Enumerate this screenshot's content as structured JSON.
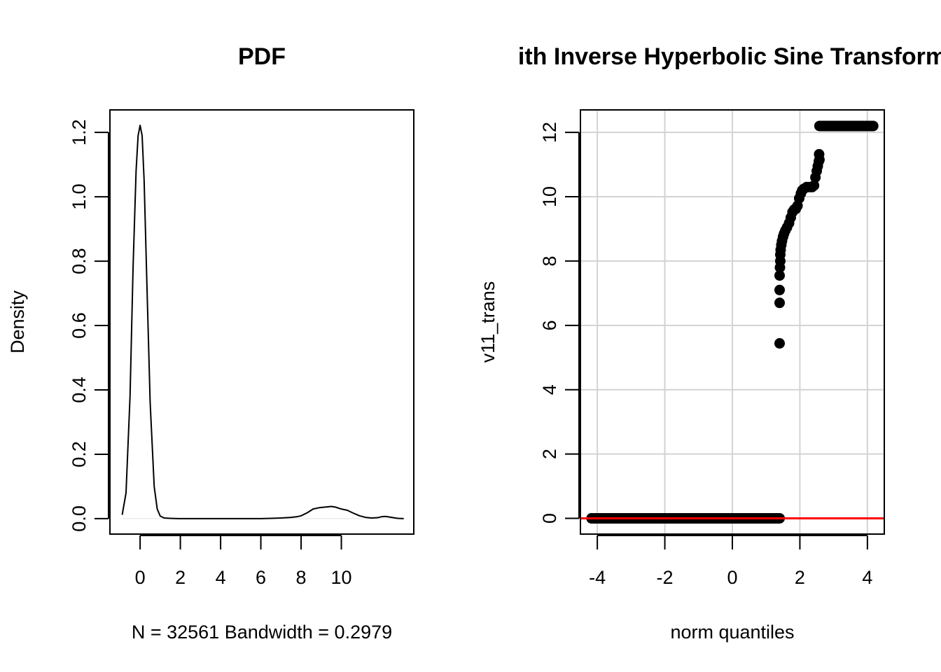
{
  "chart_data": [
    {
      "type": "line",
      "title": "PDF",
      "xlabel": "N = 32561   Bandwidth = 0.2979",
      "ylabel": "Density",
      "xlim": [
        -1.5,
        13.6
      ],
      "ylim": [
        -0.048,
        1.27
      ],
      "x_ticks": [
        0,
        2,
        4,
        6,
        8,
        10
      ],
      "x_tick_labels": [
        "0",
        "2",
        "4",
        "6",
        "8",
        "10"
      ],
      "y_ticks": [
        0.0,
        0.2,
        0.4,
        0.6,
        0.8,
        1.0,
        1.2
      ],
      "y_tick_labels": [
        "0.0",
        "0.2",
        "0.4",
        "0.6",
        "0.8",
        "1.0",
        "1.2"
      ],
      "grid": false,
      "color": "#000000",
      "x": [
        -0.89,
        -0.7,
        -0.5,
        -0.35,
        -0.2,
        -0.1,
        0.0,
        0.1,
        0.2,
        0.35,
        0.5,
        0.7,
        0.85,
        1.0,
        1.2,
        1.5,
        2.0,
        3.0,
        4.0,
        5.0,
        6.0,
        6.5,
        7.0,
        7.5,
        7.8,
        8.0,
        8.3,
        8.6,
        8.9,
        9.2,
        9.5,
        9.7,
        10.0,
        10.3,
        10.6,
        10.9,
        11.2,
        11.5,
        11.8,
        12.0,
        12.2,
        12.5,
        12.8,
        13.1
      ],
      "y": [
        0.012,
        0.08,
        0.38,
        0.78,
        1.08,
        1.19,
        1.222,
        1.19,
        1.05,
        0.7,
        0.36,
        0.1,
        0.03,
        0.008,
        0.002,
        0.001,
        0.0,
        0.0,
        0.0,
        0.0,
        0.0,
        0.001,
        0.002,
        0.004,
        0.006,
        0.009,
        0.018,
        0.03,
        0.034,
        0.036,
        0.038,
        0.036,
        0.03,
        0.026,
        0.017,
        0.009,
        0.004,
        0.002,
        0.003,
        0.006,
        0.007,
        0.004,
        0.001,
        0.0
      ],
      "baseline": 0
    },
    {
      "type": "scatter",
      "title": "ith Inverse Hyperbolic Sine Transform",
      "xlabel": "norm quantiles",
      "ylabel": "v11_trans",
      "xlim": [
        -4.5,
        4.5
      ],
      "ylim": [
        -0.49,
        12.7
      ],
      "x_ticks": [
        -4,
        -2,
        0,
        2,
        4
      ],
      "x_tick_labels": [
        "-4",
        "-2",
        "0",
        "2",
        "4"
      ],
      "y_ticks": [
        0,
        2,
        4,
        6,
        8,
        10,
        12
      ],
      "y_tick_labels": [
        "0",
        "2",
        "4",
        "6",
        "8",
        "10",
        "12"
      ],
      "grid": true,
      "grid_color": "#d3d3d3",
      "point_color": "#000000",
      "reference_line_color": "#ff0000",
      "reference_line": {
        "intercept": 0,
        "slope": 0
      },
      "segments": [
        {
          "x_from": -4.17,
          "x_to": 1.4,
          "y_from": 0.0,
          "y_to": 0.0
        },
        {
          "x_from": 2.58,
          "x_to": 4.17,
          "y_from": 12.2,
          "y_to": 12.2
        }
      ],
      "points": [
        {
          "x": -4.17,
          "y": 0.0
        },
        {
          "x": 1.4,
          "y": 5.44
        },
        {
          "x": 1.4,
          "y": 6.7
        },
        {
          "x": 1.4,
          "y": 7.1
        },
        {
          "x": 1.4,
          "y": 7.55
        },
        {
          "x": 1.41,
          "y": 7.8
        },
        {
          "x": 1.42,
          "y": 8.0
        },
        {
          "x": 1.42,
          "y": 8.2
        },
        {
          "x": 1.43,
          "y": 8.35
        },
        {
          "x": 1.45,
          "y": 8.5
        },
        {
          "x": 1.47,
          "y": 8.62
        },
        {
          "x": 1.5,
          "y": 8.75
        },
        {
          "x": 1.53,
          "y": 8.85
        },
        {
          "x": 1.57,
          "y": 8.95
        },
        {
          "x": 1.62,
          "y": 9.05
        },
        {
          "x": 1.68,
          "y": 9.18
        },
        {
          "x": 1.73,
          "y": 9.35
        },
        {
          "x": 1.78,
          "y": 9.52
        },
        {
          "x": 1.83,
          "y": 9.6
        },
        {
          "x": 1.88,
          "y": 9.62
        },
        {
          "x": 1.93,
          "y": 9.72
        },
        {
          "x": 1.98,
          "y": 9.95
        },
        {
          "x": 2.03,
          "y": 10.1
        },
        {
          "x": 2.07,
          "y": 10.2
        },
        {
          "x": 2.12,
          "y": 10.25
        },
        {
          "x": 2.2,
          "y": 10.3
        },
        {
          "x": 2.28,
          "y": 10.3
        },
        {
          "x": 2.36,
          "y": 10.3
        },
        {
          "x": 2.42,
          "y": 10.35
        },
        {
          "x": 2.46,
          "y": 10.6
        },
        {
          "x": 2.5,
          "y": 10.8
        },
        {
          "x": 2.53,
          "y": 10.95
        },
        {
          "x": 2.56,
          "y": 11.1
        },
        {
          "x": 2.58,
          "y": 11.15
        },
        {
          "x": 2.57,
          "y": 11.32
        },
        {
          "x": 4.17,
          "y": 12.2
        }
      ]
    }
  ]
}
